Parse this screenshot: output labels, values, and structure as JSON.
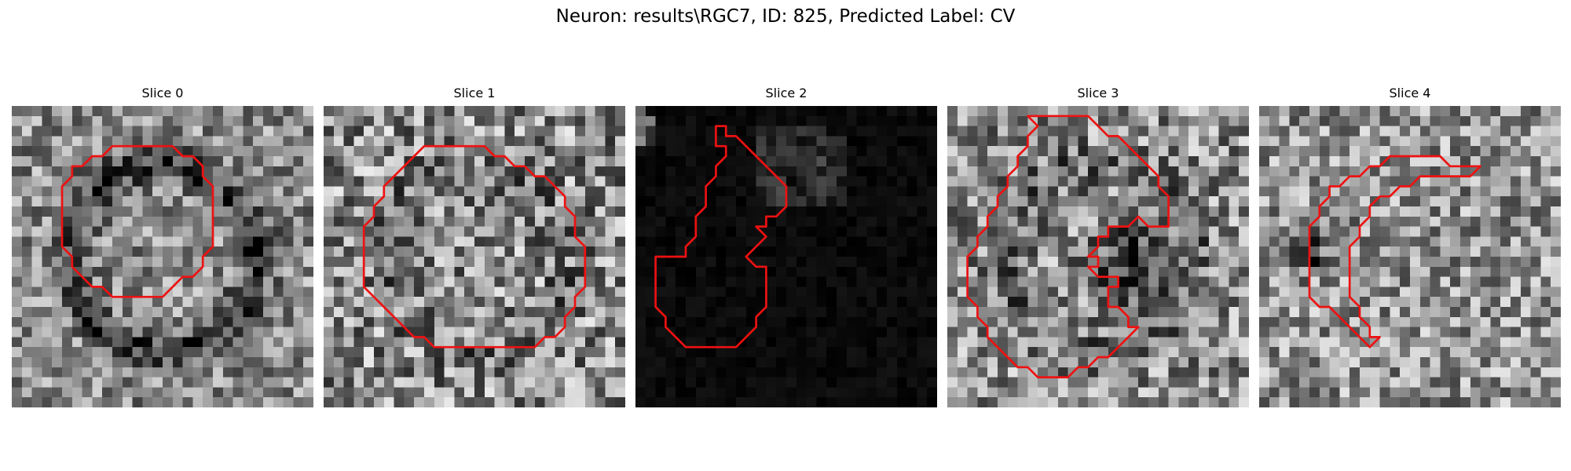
{
  "figure": {
    "title": "Neuron: results\\RGC7, ID: 825, Predicted Label: CV"
  },
  "panels": [
    {
      "title": "Slice 0",
      "image": {
        "mean": 0.55,
        "contrast": 0.3,
        "vignette": 0.35,
        "dark_blob": 0.0,
        "seed": 11
      },
      "contour_color": "#ee1111",
      "contour": [
        [
          14,
          4
        ],
        [
          16,
          4
        ],
        [
          17,
          5
        ],
        [
          18,
          5
        ],
        [
          19,
          6
        ],
        [
          19,
          7
        ],
        [
          20,
          8
        ],
        [
          20,
          9
        ],
        [
          20,
          10
        ],
        [
          20,
          11
        ],
        [
          20,
          12
        ],
        [
          20,
          13
        ],
        [
          20,
          14
        ],
        [
          19,
          15
        ],
        [
          19,
          16
        ],
        [
          18,
          17
        ],
        [
          17,
          17
        ],
        [
          16,
          18
        ],
        [
          15,
          19
        ],
        [
          14,
          19
        ],
        [
          13,
          19
        ],
        [
          12,
          19
        ],
        [
          11,
          19
        ],
        [
          10,
          19
        ],
        [
          9,
          18
        ],
        [
          8,
          18
        ],
        [
          7,
          17
        ],
        [
          6,
          16
        ],
        [
          6,
          15
        ],
        [
          5,
          14
        ],
        [
          5,
          13
        ],
        [
          5,
          12
        ],
        [
          5,
          11
        ],
        [
          5,
          10
        ],
        [
          5,
          9
        ],
        [
          5,
          8
        ],
        [
          6,
          7
        ],
        [
          6,
          6
        ],
        [
          7,
          6
        ],
        [
          8,
          5
        ],
        [
          9,
          5
        ],
        [
          10,
          4
        ],
        [
          11,
          4
        ],
        [
          12,
          4
        ],
        [
          13,
          4
        ]
      ]
    },
    {
      "title": "Slice 1",
      "image": {
        "mean": 0.55,
        "contrast": 0.38,
        "vignette": 0.1,
        "dark_blob": 0.0,
        "seed": 23
      },
      "contour_color": "#ee1111",
      "contour": [
        [
          12,
          4
        ],
        [
          13,
          4
        ],
        [
          14,
          4
        ],
        [
          15,
          4
        ],
        [
          16,
          4
        ],
        [
          17,
          5
        ],
        [
          18,
          5
        ],
        [
          19,
          6
        ],
        [
          20,
          6
        ],
        [
          21,
          7
        ],
        [
          22,
          7
        ],
        [
          23,
          8
        ],
        [
          24,
          9
        ],
        [
          24,
          10
        ],
        [
          25,
          11
        ],
        [
          25,
          12
        ],
        [
          25,
          13
        ],
        [
          26,
          14
        ],
        [
          26,
          15
        ],
        [
          26,
          16
        ],
        [
          26,
          17
        ],
        [
          26,
          18
        ],
        [
          25,
          19
        ],
        [
          25,
          20
        ],
        [
          24,
          21
        ],
        [
          24,
          22
        ],
        [
          23,
          23
        ],
        [
          22,
          23
        ],
        [
          21,
          24
        ],
        [
          20,
          24
        ],
        [
          19,
          24
        ],
        [
          18,
          24
        ],
        [
          17,
          24
        ],
        [
          16,
          24
        ],
        [
          15,
          24
        ],
        [
          14,
          24
        ],
        [
          13,
          24
        ],
        [
          12,
          24
        ],
        [
          11,
          24
        ],
        [
          10,
          23
        ],
        [
          9,
          23
        ],
        [
          8,
          22
        ],
        [
          7,
          21
        ],
        [
          6,
          20
        ],
        [
          5,
          19
        ],
        [
          4,
          18
        ],
        [
          4,
          17
        ],
        [
          4,
          16
        ],
        [
          4,
          15
        ],
        [
          4,
          14
        ],
        [
          4,
          13
        ],
        [
          4,
          12
        ],
        [
          5,
          11
        ],
        [
          5,
          10
        ],
        [
          6,
          9
        ],
        [
          6,
          8
        ],
        [
          7,
          7
        ],
        [
          8,
          6
        ],
        [
          9,
          5
        ],
        [
          10,
          4
        ],
        [
          11,
          4
        ]
      ]
    },
    {
      "title": "Slice 2",
      "image": {
        "mean": 0.04,
        "contrast": 0.04,
        "vignette": 0.0,
        "dark_blob": 0.0,
        "seed": 37,
        "bright_patch": [
          12,
          2,
          9,
          8
        ]
      },
      "contour_color": "#ee1111",
      "contour": [
        [
          8,
          2
        ],
        [
          9,
          2
        ],
        [
          9,
          3
        ],
        [
          10,
          3
        ],
        [
          11,
          4
        ],
        [
          12,
          5
        ],
        [
          13,
          6
        ],
        [
          14,
          7
        ],
        [
          15,
          8
        ],
        [
          15,
          9
        ],
        [
          15,
          10
        ],
        [
          14,
          11
        ],
        [
          13,
          11
        ],
        [
          13,
          12
        ],
        [
          12,
          12
        ],
        [
          13,
          13
        ],
        [
          12,
          14
        ],
        [
          11,
          15
        ],
        [
          12,
          16
        ],
        [
          13,
          16
        ],
        [
          13,
          17
        ],
        [
          13,
          18
        ],
        [
          13,
          19
        ],
        [
          13,
          20
        ],
        [
          12,
          21
        ],
        [
          12,
          22
        ],
        [
          11,
          23
        ],
        [
          10,
          24
        ],
        [
          9,
          24
        ],
        [
          8,
          24
        ],
        [
          7,
          24
        ],
        [
          6,
          24
        ],
        [
          5,
          24
        ],
        [
          4,
          23
        ],
        [
          3,
          22
        ],
        [
          3,
          21
        ],
        [
          2,
          20
        ],
        [
          2,
          19
        ],
        [
          2,
          18
        ],
        [
          2,
          17
        ],
        [
          2,
          16
        ],
        [
          2,
          15
        ],
        [
          3,
          15
        ],
        [
          4,
          15
        ],
        [
          5,
          15
        ],
        [
          5,
          14
        ],
        [
          6,
          13
        ],
        [
          6,
          12
        ],
        [
          6,
          11
        ],
        [
          7,
          10
        ],
        [
          7,
          9
        ],
        [
          7,
          8
        ],
        [
          8,
          7
        ],
        [
          8,
          6
        ],
        [
          9,
          5
        ],
        [
          9,
          4
        ],
        [
          8,
          4
        ],
        [
          8,
          3
        ]
      ]
    },
    {
      "title": "Slice 3",
      "image": {
        "mean": 0.55,
        "contrast": 0.35,
        "vignette": 0.15,
        "dark_blob": 0.35,
        "seed": 51
      },
      "contour_color": "#ee1111",
      "contour": [
        [
          8,
          1
        ],
        [
          9,
          1
        ],
        [
          10,
          1
        ],
        [
          11,
          1
        ],
        [
          12,
          1
        ],
        [
          13,
          1
        ],
        [
          14,
          1
        ],
        [
          15,
          2
        ],
        [
          16,
          3
        ],
        [
          17,
          3
        ],
        [
          18,
          4
        ],
        [
          19,
          5
        ],
        [
          20,
          6
        ],
        [
          21,
          7
        ],
        [
          21,
          8
        ],
        [
          22,
          9
        ],
        [
          22,
          10
        ],
        [
          22,
          11
        ],
        [
          22,
          12
        ],
        [
          21,
          12
        ],
        [
          20,
          12
        ],
        [
          19,
          11
        ],
        [
          18,
          12
        ],
        [
          17,
          12
        ],
        [
          16,
          12
        ],
        [
          16,
          13
        ],
        [
          15,
          13
        ],
        [
          15,
          14
        ],
        [
          14,
          15
        ],
        [
          15,
          15
        ],
        [
          15,
          16
        ],
        [
          14,
          16
        ],
        [
          15,
          17
        ],
        [
          16,
          17
        ],
        [
          17,
          17
        ],
        [
          17,
          18
        ],
        [
          16,
          18
        ],
        [
          16,
          19
        ],
        [
          16,
          20
        ],
        [
          17,
          20
        ],
        [
          18,
          21
        ],
        [
          18,
          22
        ],
        [
          19,
          22
        ],
        [
          18,
          23
        ],
        [
          17,
          24
        ],
        [
          16,
          25
        ],
        [
          15,
          25
        ],
        [
          14,
          26
        ],
        [
          13,
          26
        ],
        [
          12,
          27
        ],
        [
          11,
          27
        ],
        [
          10,
          27
        ],
        [
          9,
          27
        ],
        [
          8,
          26
        ],
        [
          7,
          26
        ],
        [
          6,
          25
        ],
        [
          5,
          24
        ],
        [
          4,
          23
        ],
        [
          4,
          22
        ],
        [
          3,
          21
        ],
        [
          3,
          20
        ],
        [
          2,
          19
        ],
        [
          2,
          18
        ],
        [
          2,
          17
        ],
        [
          2,
          16
        ],
        [
          2,
          15
        ],
        [
          3,
          14
        ],
        [
          3,
          13
        ],
        [
          4,
          12
        ],
        [
          4,
          11
        ],
        [
          5,
          10
        ],
        [
          5,
          9
        ],
        [
          6,
          8
        ],
        [
          6,
          7
        ],
        [
          7,
          6
        ],
        [
          7,
          5
        ],
        [
          8,
          4
        ],
        [
          8,
          3
        ],
        [
          9,
          2
        ]
      ]
    },
    {
      "title": "Slice 4",
      "image": {
        "mean": 0.58,
        "contrast": 0.32,
        "vignette": 0.0,
        "dark_blob": 0.0,
        "seed": 67,
        "dark_spot": [
          4,
          14
        ]
      },
      "contour_color": "#ee1111",
      "contour": [
        [
          13,
          5
        ],
        [
          14,
          5
        ],
        [
          15,
          5
        ],
        [
          16,
          5
        ],
        [
          17,
          5
        ],
        [
          18,
          5
        ],
        [
          19,
          6
        ],
        [
          20,
          6
        ],
        [
          21,
          6
        ],
        [
          22,
          6
        ],
        [
          21,
          7
        ],
        [
          20,
          7
        ],
        [
          19,
          7
        ],
        [
          18,
          7
        ],
        [
          17,
          7
        ],
        [
          16,
          7
        ],
        [
          15,
          8
        ],
        [
          14,
          8
        ],
        [
          13,
          9
        ],
        [
          12,
          9
        ],
        [
          11,
          10
        ],
        [
          11,
          11
        ],
        [
          10,
          12
        ],
        [
          10,
          13
        ],
        [
          9,
          14
        ],
        [
          9,
          15
        ],
        [
          9,
          16
        ],
        [
          9,
          17
        ],
        [
          9,
          18
        ],
        [
          9,
          19
        ],
        [
          10,
          20
        ],
        [
          10,
          21
        ],
        [
          11,
          22
        ],
        [
          11,
          23
        ],
        [
          12,
          23
        ],
        [
          11,
          24
        ],
        [
          10,
          23
        ],
        [
          9,
          22
        ],
        [
          8,
          21
        ],
        [
          7,
          20
        ],
        [
          6,
          20
        ],
        [
          5,
          19
        ],
        [
          5,
          18
        ],
        [
          5,
          17
        ],
        [
          5,
          16
        ],
        [
          5,
          15
        ],
        [
          5,
          14
        ],
        [
          5,
          13
        ],
        [
          5,
          12
        ],
        [
          6,
          11
        ],
        [
          6,
          10
        ],
        [
          7,
          9
        ],
        [
          7,
          8
        ],
        [
          8,
          8
        ],
        [
          9,
          7
        ],
        [
          10,
          7
        ],
        [
          11,
          6
        ],
        [
          12,
          6
        ]
      ]
    }
  ]
}
